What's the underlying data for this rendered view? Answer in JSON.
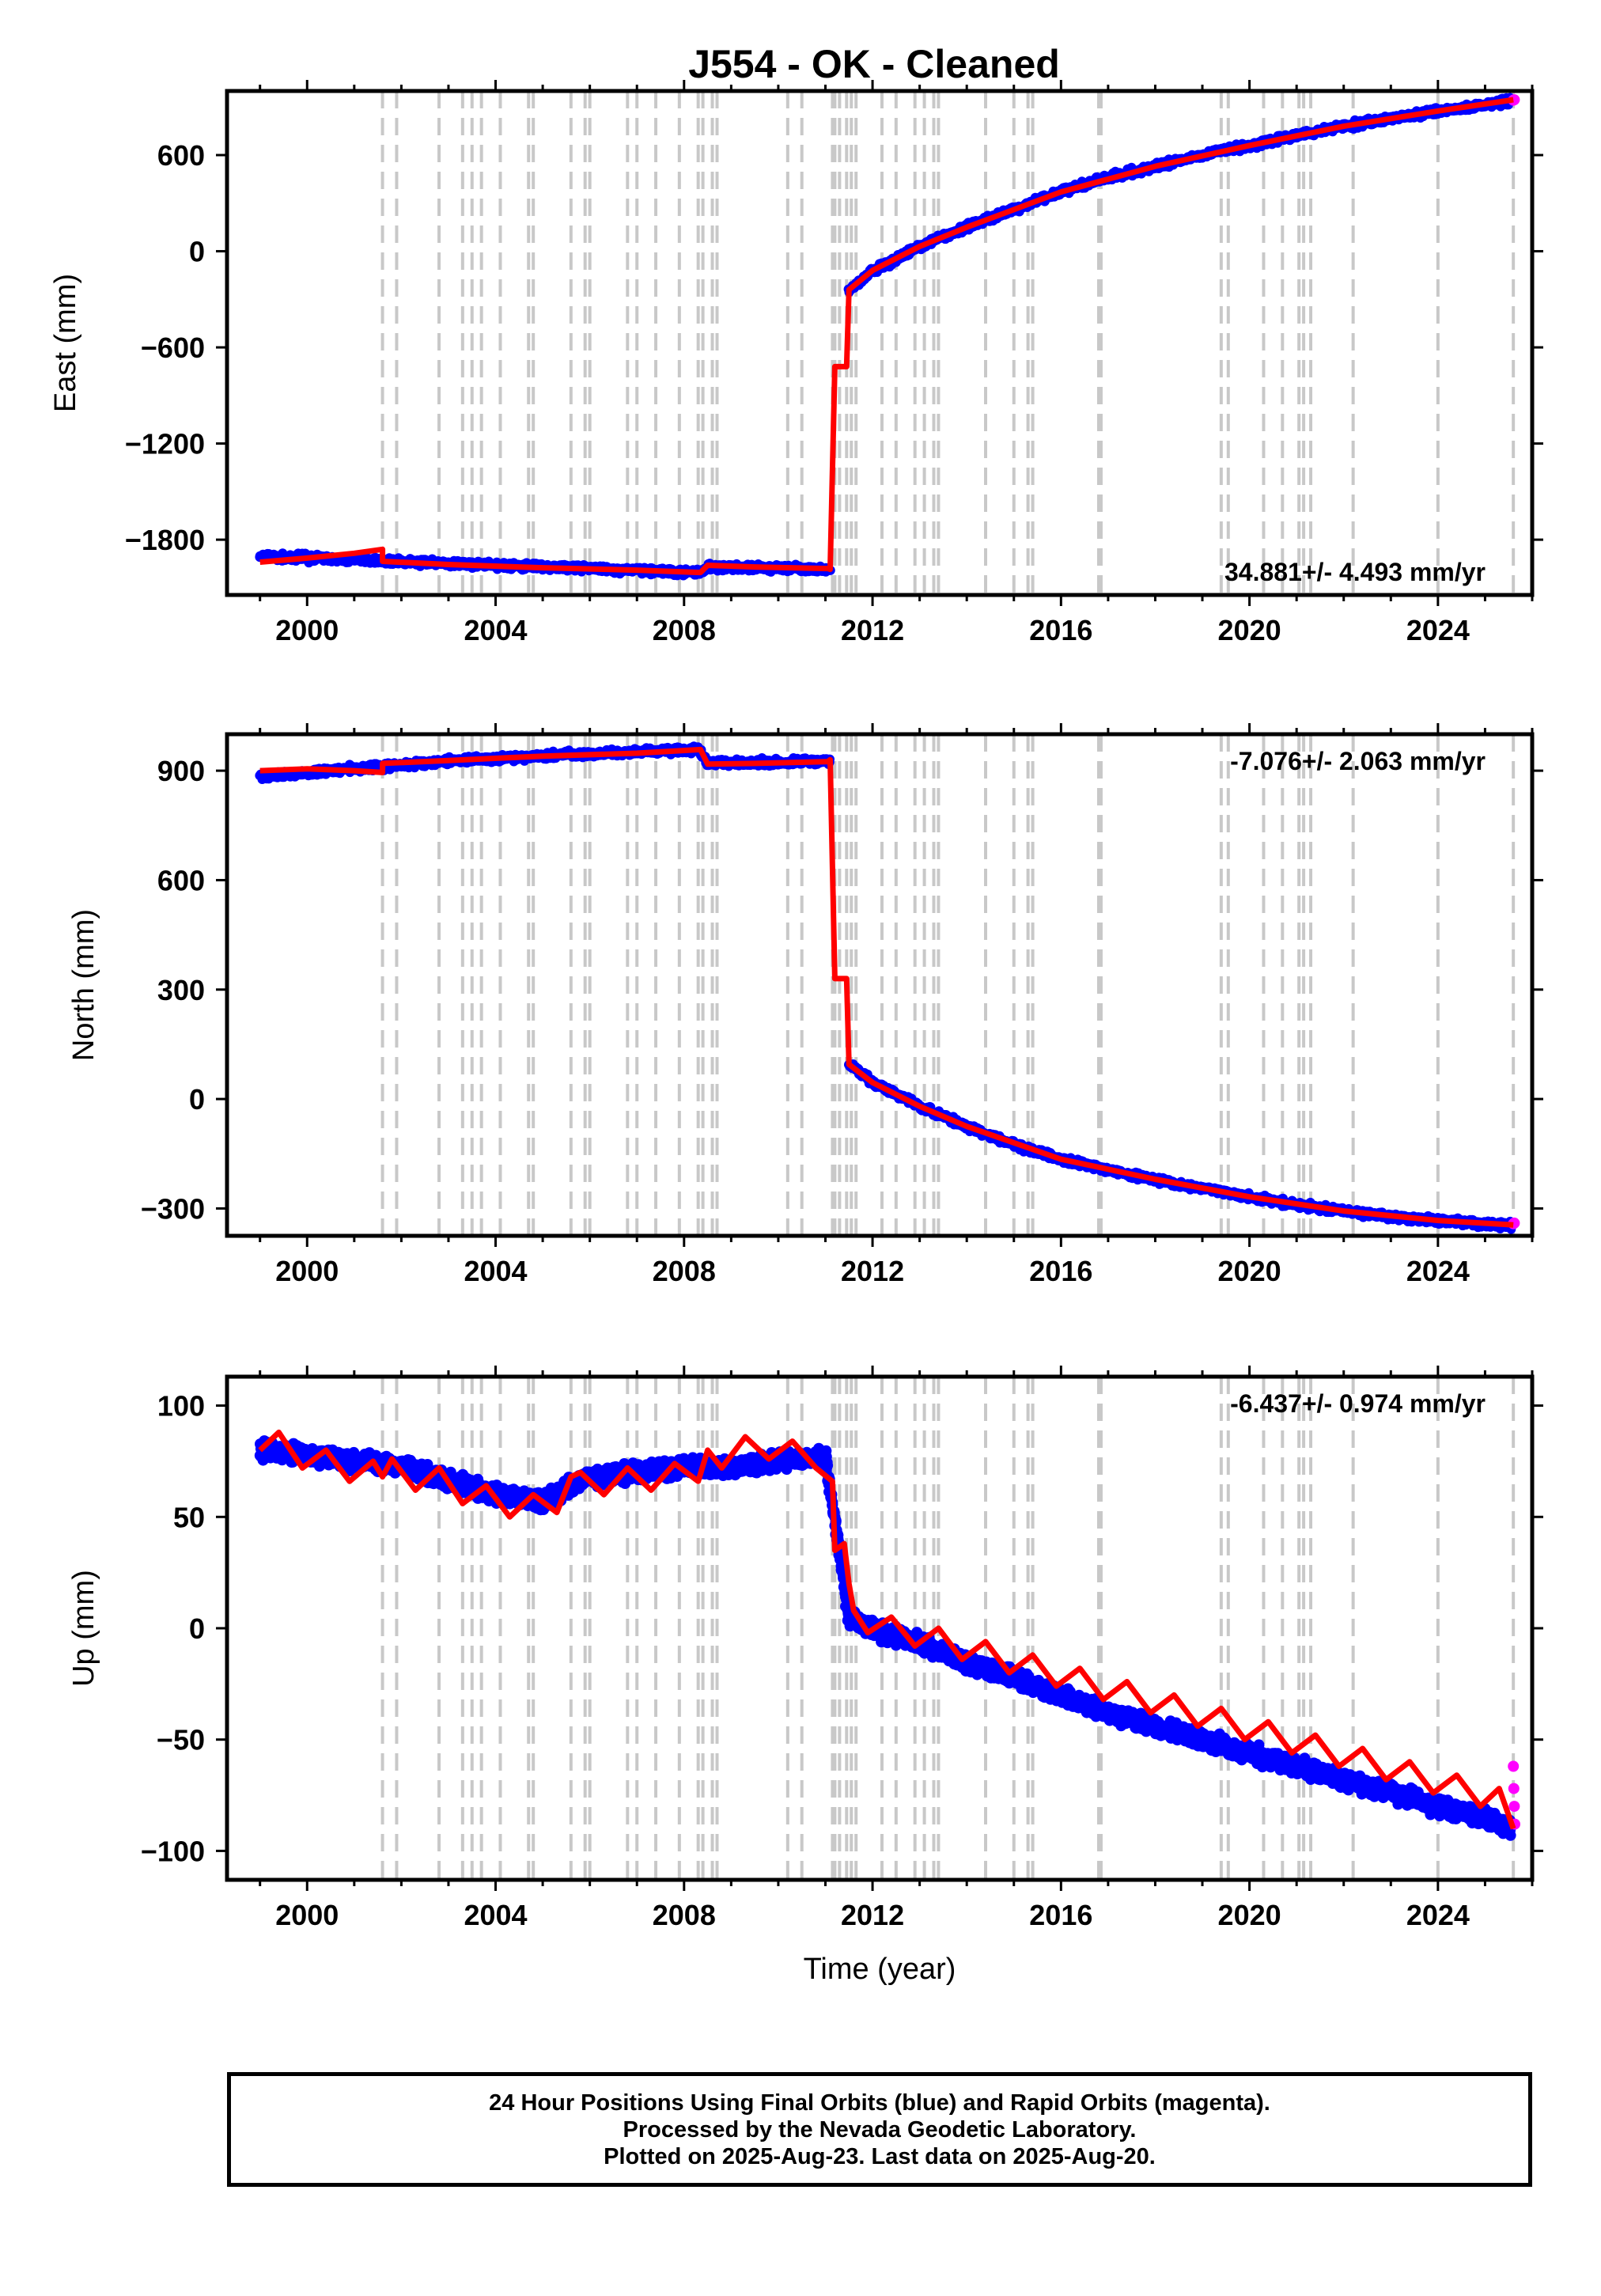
{
  "title": "J554  - OK - Cleaned",
  "footer": {
    "lines": [
      "24 Hour Positions Using Final Orbits (blue) and Rapid Orbits (magenta).",
      "Processed by the Nevada Geodetic Laboratory.",
      "Plotted on 2025-Aug-23. Last data on 2025-Aug-20."
    ]
  },
  "colors": {
    "final_orbits": "#0000ff",
    "rapid_orbits": "#ff00ff",
    "model_fit": "#ff0000",
    "event_lines": "#c8c8c8"
  },
  "chart_data": [
    {
      "type": "scatter",
      "name": "east",
      "ylabel": "East (mm)",
      "xlabel": "",
      "rate_label": "34.881+/- 4.493 mm/yr",
      "xlim": [
        1998.3,
        2026.0
      ],
      "ylim": [
        -2145,
        1000
      ],
      "xticks": [
        2000,
        2004,
        2008,
        2012,
        2016,
        2020,
        2024
      ],
      "yticks": [
        600,
        0,
        -600,
        -1200,
        -1800
      ],
      "grid": false,
      "series": [
        {
          "name": "Final Orbits",
          "color": "blue",
          "x": [
            1999.0,
            2000.0,
            2001.0,
            2001.6,
            2002.5,
            2003.5,
            2004.5,
            2005.5,
            2006.5,
            2007.5,
            2008.3,
            2008.5,
            2009.5,
            2010.5,
            2011.1,
            2011.5,
            2011.7,
            2012.0,
            2012.5,
            2013.0,
            2014.0,
            2015.0,
            2016.0,
            2017.0,
            2018.0,
            2019.0,
            2020.0,
            2021.0,
            2022.0,
            2023.0,
            2024.0,
            2025.0,
            2025.55
          ],
          "y": [
            -1905,
            -1915,
            -1925,
            -1935,
            -1945,
            -1955,
            -1965,
            -1975,
            -1985,
            -1995,
            -2005,
            -1970,
            -1975,
            -1980,
            -1985,
            -240,
            -200,
            -120,
            -50,
            30,
            150,
            260,
            370,
            460,
            530,
            600,
            660,
            720,
            780,
            830,
            875,
            915,
            940
          ]
        },
        {
          "name": "Rapid Orbits",
          "color": "magenta",
          "x": [
            2025.6,
            2025.62
          ],
          "y": [
            942,
            945
          ]
        },
        {
          "name": "Model",
          "color": "red",
          "x": [
            1999.0,
            2000.0,
            2001.0,
            2001.6,
            2001.6,
            2003.0,
            2005.0,
            2007.0,
            2008.35,
            2008.5,
            2009.5,
            2011.05,
            2011.1,
            2011.2,
            2011.45,
            2011.5,
            2012.0,
            2013.0,
            2014.0,
            2016.0,
            2018.0,
            2020.0,
            2022.0,
            2024.0,
            2025.6
          ],
          "y": [
            -1940,
            -1915,
            -1885,
            -1860,
            -1935,
            -1955,
            -1975,
            -1990,
            -2005,
            -1960,
            -1970,
            -1980,
            -1985,
            -720,
            -720,
            -240,
            -120,
            30,
            150,
            370,
            530,
            660,
            780,
            875,
            945
          ]
        }
      ],
      "event_lines": [
        2001.6,
        2001.9,
        2002.8,
        2003.3,
        2003.5,
        2003.7,
        2004.1,
        2004.7,
        2004.8,
        2005.6,
        2005.9,
        2006.0,
        2006.8,
        2007.0,
        2007.4,
        2007.9,
        2008.3,
        2008.4,
        2008.6,
        2008.7,
        2010.2,
        2010.5,
        2011.15,
        2011.2,
        2011.3,
        2011.45,
        2011.55,
        2011.65,
        2012.2,
        2012.5,
        2012.9,
        2013.1,
        2013.3,
        2013.4,
        2014.4,
        2015.0,
        2015.3,
        2015.4,
        2016.8,
        2016.85,
        2019.4,
        2019.55,
        2020.3,
        2020.7,
        2021.05,
        2021.15,
        2021.3,
        2022.2,
        2024.0,
        2025.6
      ]
    },
    {
      "type": "scatter",
      "name": "north",
      "ylabel": "North (mm)",
      "xlabel": "",
      "rate_label": "-7.076+/- 2.063 mm/yr",
      "xlim": [
        1998.3,
        2026.0
      ],
      "ylim": [
        -375,
        1000
      ],
      "xticks": [
        2000,
        2004,
        2008,
        2012,
        2016,
        2020,
        2024
      ],
      "yticks": [
        900,
        600,
        300,
        0,
        -300
      ],
      "grid": false,
      "series": [
        {
          "name": "Final Orbits",
          "color": "blue",
          "x": [
            1999.0,
            2000.0,
            2001.0,
            2001.6,
            2002.5,
            2003.5,
            2004.5,
            2005.5,
            2006.5,
            2007.5,
            2008.3,
            2008.5,
            2009.5,
            2010.5,
            2011.1,
            2011.5,
            2011.7,
            2012.0,
            2012.5,
            2013.0,
            2014.0,
            2015.0,
            2016.0,
            2017.0,
            2018.0,
            2019.0,
            2020.0,
            2021.0,
            2022.0,
            2023.0,
            2024.0,
            2025.0,
            2025.55
          ],
          "y": [
            885,
            895,
            905,
            912,
            922,
            930,
            937,
            943,
            948,
            953,
            958,
            920,
            922,
            925,
            928,
            95,
            75,
            45,
            15,
            -20,
            -75,
            -125,
            -165,
            -195,
            -220,
            -245,
            -268,
            -290,
            -307,
            -322,
            -333,
            -342,
            -345
          ]
        },
        {
          "name": "Rapid Orbits",
          "color": "magenta",
          "x": [
            2025.6,
            2025.62
          ],
          "y": [
            -342,
            -340
          ]
        },
        {
          "name": "Model",
          "color": "red",
          "x": [
            1999.0,
            2000.0,
            2001.0,
            2001.6,
            2001.6,
            2003.0,
            2005.0,
            2007.0,
            2008.35,
            2008.5,
            2009.5,
            2011.05,
            2011.1,
            2011.2,
            2011.45,
            2011.5,
            2012.0,
            2013.0,
            2014.0,
            2016.0,
            2018.0,
            2020.0,
            2022.0,
            2024.0,
            2025.6
          ],
          "y": [
            900,
            905,
            900,
            895,
            920,
            928,
            940,
            948,
            958,
            918,
            920,
            925,
            930,
            330,
            330,
            95,
            45,
            -20,
            -75,
            -165,
            -220,
            -268,
            -307,
            -333,
            -345
          ]
        }
      ],
      "event_lines": [
        2001.6,
        2001.9,
        2002.8,
        2003.3,
        2003.5,
        2003.7,
        2004.1,
        2004.7,
        2004.8,
        2005.6,
        2005.9,
        2006.0,
        2006.8,
        2007.0,
        2007.4,
        2007.9,
        2008.3,
        2008.4,
        2008.6,
        2008.7,
        2010.2,
        2010.5,
        2011.15,
        2011.2,
        2011.3,
        2011.45,
        2011.55,
        2011.65,
        2012.2,
        2012.5,
        2012.9,
        2013.1,
        2013.3,
        2013.4,
        2014.4,
        2015.0,
        2015.3,
        2015.4,
        2016.8,
        2016.85,
        2019.4,
        2019.55,
        2020.3,
        2020.7,
        2021.05,
        2021.15,
        2021.3,
        2022.2,
        2024.0,
        2025.6
      ]
    },
    {
      "type": "scatter",
      "name": "up",
      "ylabel": "Up (mm)",
      "xlabel": "Time (year)",
      "rate_label": "-6.437+/- 0.974 mm/yr",
      "xlim": [
        1998.3,
        2026.0
      ],
      "ylim": [
        -113,
        113
      ],
      "xticks": [
        2000,
        2004,
        2008,
        2012,
        2016,
        2020,
        2024
      ],
      "yticks": [
        100,
        50,
        0,
        -50,
        -100
      ],
      "grid": false,
      "series": [
        {
          "name": "Final Orbits",
          "color": "blue",
          "x": [
            1999.0,
            2000.0,
            2001.0,
            2002.0,
            2003.0,
            2004.0,
            2005.0,
            2006.0,
            2007.0,
            2008.0,
            2009.0,
            2010.0,
            2011.0,
            2011.5,
            2012.0,
            2013.0,
            2014.0,
            2015.0,
            2016.0,
            2017.0,
            2018.0,
            2019.0,
            2020.0,
            2021.0,
            2022.0,
            2023.0,
            2024.0,
            2025.0,
            2025.55
          ],
          "y": [
            80,
            78,
            75,
            73,
            66,
            60,
            57,
            68,
            70,
            73,
            72,
            75,
            77,
            5,
            0,
            -7,
            -15,
            -22,
            -30,
            -38,
            -44,
            -50,
            -56,
            -62,
            -68,
            -74,
            -80,
            -85,
            -90
          ]
        },
        {
          "name": "Rapid Orbits",
          "color": "magenta",
          "x": [
            2025.6,
            2025.61,
            2025.62,
            2025.63
          ],
          "y": [
            -62,
            -72,
            -80,
            -88
          ]
        },
        {
          "name": "Model",
          "color": "red",
          "x": [
            1999.0,
            1999.4,
            1999.9,
            2000.4,
            2000.9,
            2001.4,
            2001.6,
            2001.8,
            2002.3,
            2002.8,
            2003.3,
            2003.8,
            2004.3,
            2004.8,
            2005.3,
            2005.6,
            2005.8,
            2006.3,
            2006.8,
            2007.3,
            2007.8,
            2008.3,
            2008.5,
            2008.8,
            2009.3,
            2009.8,
            2010.3,
            2010.8,
            2011.15,
            2011.2,
            2011.4,
            2011.5,
            2011.6,
            2011.9,
            2012.4,
            2012.9,
            2013.4,
            2013.9,
            2014.4,
            2014.9,
            2015.4,
            2015.9,
            2016.4,
            2016.9,
            2017.4,
            2017.9,
            2018.4,
            2018.9,
            2019.4,
            2019.9,
            2020.4,
            2020.9,
            2021.4,
            2021.9,
            2022.4,
            2022.9,
            2023.4,
            2023.9,
            2024.4,
            2024.9,
            2025.3,
            2025.6
          ],
          "y": [
            80,
            88,
            72,
            80,
            66,
            75,
            68,
            76,
            62,
            72,
            56,
            64,
            50,
            60,
            52,
            68,
            70,
            60,
            72,
            62,
            74,
            66,
            80,
            72,
            86,
            76,
            84,
            72,
            66,
            35,
            38,
            20,
            8,
            -2,
            5,
            -8,
            0,
            -14,
            -6,
            -20,
            -12,
            -26,
            -18,
            -32,
            -24,
            -38,
            -30,
            -44,
            -36,
            -50,
            -42,
            -56,
            -48,
            -62,
            -54,
            -68,
            -60,
            -74,
            -66,
            -80,
            -72,
            -90
          ]
        }
      ],
      "event_lines": [
        2001.6,
        2001.9,
        2002.8,
        2003.3,
        2003.5,
        2003.7,
        2004.1,
        2004.7,
        2004.8,
        2005.6,
        2005.9,
        2006.0,
        2006.8,
        2007.0,
        2007.4,
        2007.9,
        2008.3,
        2008.4,
        2008.6,
        2008.7,
        2010.2,
        2010.5,
        2011.15,
        2011.2,
        2011.3,
        2011.45,
        2011.55,
        2011.65,
        2012.2,
        2012.5,
        2012.9,
        2013.1,
        2013.3,
        2013.4,
        2014.4,
        2015.0,
        2015.3,
        2015.4,
        2016.8,
        2016.85,
        2019.4,
        2019.55,
        2020.3,
        2020.7,
        2021.05,
        2021.15,
        2021.3,
        2022.2,
        2024.0,
        2025.6
      ]
    }
  ]
}
